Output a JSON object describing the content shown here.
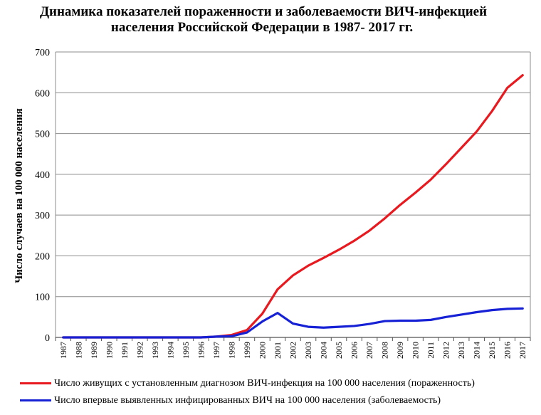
{
  "chart_data": {
    "type": "line",
    "title": "Динамика показателей пораженности и заболеваемости  ВИЧ-инфекцией",
    "subtitle": "населения Российской Федерации  в 1987- 2017 гг.",
    "xlabel": "",
    "ylabel": "Число случаев  на 100 000 населения",
    "ylim": [
      0,
      700
    ],
    "yticks": [
      "0",
      "100",
      "200",
      "300",
      "400",
      "500",
      "600",
      "700"
    ],
    "grid": true,
    "legend_position": "bottom",
    "x": [
      "1987",
      "1988",
      "1989",
      "1990",
      "1991",
      "1992",
      "1993",
      "1994",
      "1995",
      "1996",
      "1997",
      "1998",
      "1999",
      "2000",
      "2001",
      "2002",
      "2003",
      "2004",
      "2005",
      "2006",
      "2007",
      "2008",
      "2009",
      "2010",
      "2011",
      "2012",
      "2013",
      "2014",
      "2015",
      "2016",
      "2017"
    ],
    "series": [
      {
        "name": "Число живущих с установленным диагнозом ВИЧ-инфекция на 100 000 населения (пораженность)",
        "color": "#e8191f",
        "values": [
          0,
          0,
          0,
          0,
          0,
          0,
          0,
          0,
          0,
          0,
          2,
          6,
          18,
          58,
          118,
          152,
          176,
          195,
          215,
          237,
          262,
          292,
          325,
          355,
          387,
          425,
          465,
          505,
          555,
          612,
          643
        ]
      },
      {
        "name": "Число впервые выявленных инфицированных ВИЧ на 100 000 населения (заболеваемость)",
        "color": "#1621d6",
        "values": [
          0,
          0,
          0,
          0,
          0,
          0,
          0,
          0,
          0,
          0,
          2,
          3,
          12,
          39,
          60,
          34,
          26,
          24,
          26,
          28,
          33,
          40,
          41,
          41,
          43,
          50,
          56,
          62,
          67,
          70,
          71
        ]
      }
    ]
  }
}
